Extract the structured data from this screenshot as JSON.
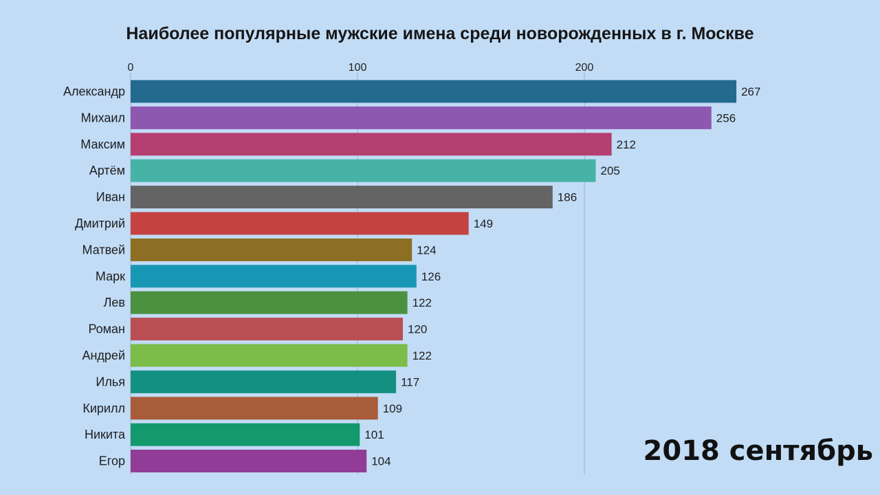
{
  "chart_data": {
    "type": "bar",
    "orientation": "horizontal",
    "title": "Наиболее популярные мужские имена среди новорожденных в г. Москве",
    "period_label": "2018 сентябрь",
    "xticks": [
      "0",
      "100",
      "200"
    ],
    "xlim": [
      0,
      267
    ],
    "grid": true,
    "categories": [
      "Александр",
      "Михаил",
      "Максим",
      "Артём",
      "Иван",
      "Дмитрий",
      "Матвей",
      "Марк",
      "Лев",
      "Роман",
      "Андрей",
      "Илья",
      "Кирилл",
      "Никита",
      "Егор"
    ],
    "values": [
      267,
      256,
      212,
      205,
      186,
      149,
      124,
      126,
      122,
      120,
      122,
      117,
      109,
      101,
      104
    ],
    "value_labels": [
      "267",
      "256",
      "212",
      "205",
      "186",
      "149",
      "124",
      "126",
      "122",
      "120",
      "122",
      "117",
      "109",
      "101",
      "104"
    ],
    "colors": [
      "#246a8e",
      "#8e58b0",
      "#b53f70",
      "#47b3a6",
      "#646464",
      "#c44242",
      "#8c6e24",
      "#1897b5",
      "#4c9140",
      "#b94f54",
      "#7cbc48",
      "#149082",
      "#a85c3a",
      "#13996c",
      "#913c96"
    ]
  }
}
